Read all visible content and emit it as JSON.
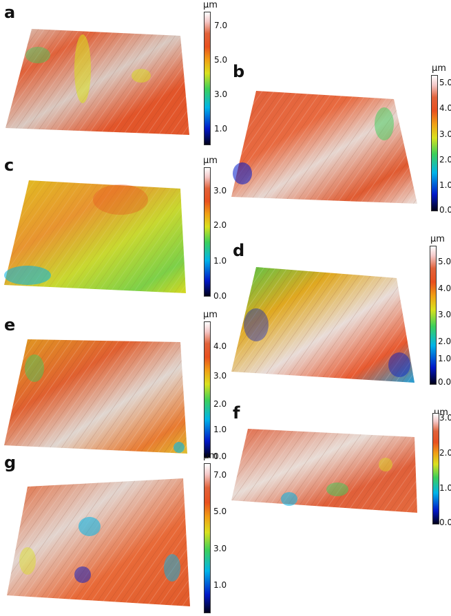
{
  "figure": {
    "unit": "µm",
    "panels": [
      {
        "id": "a",
        "letter": "a",
        "ticks": [
          "7.0",
          "5.0",
          "3.0",
          "1.0"
        ]
      },
      {
        "id": "b",
        "letter": "b",
        "ticks": [
          "5.0",
          "4.0",
          "3.0",
          "2.0",
          "1.0",
          "0.0"
        ]
      },
      {
        "id": "c",
        "letter": "c",
        "ticks": [
          "3.0",
          "2.0",
          "1.0",
          "0.0"
        ]
      },
      {
        "id": "d",
        "letter": "d",
        "ticks": [
          "5.0",
          "4.0",
          "3.0",
          "2.0",
          "1.0",
          "0.0"
        ]
      },
      {
        "id": "e",
        "letter": "e",
        "ticks": [
          "4.0",
          "3.0",
          "2.0",
          "1.0",
          "0.0"
        ]
      },
      {
        "id": "f",
        "letter": "f",
        "ticks": [
          "3.0",
          "2.0",
          "1.0",
          "0.0"
        ]
      },
      {
        "id": "g",
        "letter": "g",
        "ticks": [
          "7.0",
          "5.0",
          "3.0",
          "1.0"
        ]
      }
    ]
  }
}
